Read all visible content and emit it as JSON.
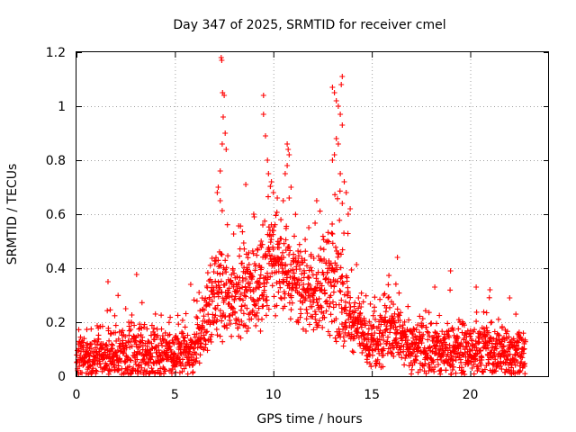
{
  "chart_data": {
    "type": "scatter",
    "title": "Day 347 of 2025, SRMTID for receiver cmel",
    "xlabel": "GPS time / hours",
    "ylabel": "SRMTID / TECUs",
    "xlim": [
      0,
      24
    ],
    "ylim": [
      0,
      1.2
    ],
    "xticks": [
      0,
      5,
      10,
      15,
      20
    ],
    "yticks": [
      0,
      0.2,
      0.4,
      0.6,
      0.8,
      1,
      1.2
    ],
    "xtick_labels": [
      "0",
      "5",
      "10",
      "15",
      "20"
    ],
    "ytick_labels": [
      "0",
      "0.2",
      "0.4",
      "0.6",
      "0.8",
      "1",
      "1.2"
    ],
    "grid": true,
    "marker": "+",
    "color": "#ff0000",
    "series": [
      {
        "name": "SRMTID",
        "profile": [
          {
            "x": 0,
            "base": 0.07,
            "spread": 0.06
          },
          {
            "x": 1,
            "base": 0.07,
            "spread": 0.06
          },
          {
            "x": 2,
            "base": 0.08,
            "spread": 0.08
          },
          {
            "x": 3,
            "base": 0.09,
            "spread": 0.09
          },
          {
            "x": 4,
            "base": 0.08,
            "spread": 0.08
          },
          {
            "x": 5,
            "base": 0.07,
            "spread": 0.07
          },
          {
            "x": 6,
            "base": 0.1,
            "spread": 0.08
          },
          {
            "x": 7,
            "base": 0.3,
            "spread": 0.15
          },
          {
            "x": 8,
            "base": 0.3,
            "spread": 0.12
          },
          {
            "x": 9,
            "base": 0.32,
            "spread": 0.14
          },
          {
            "x": 10,
            "base": 0.45,
            "spread": 0.16
          },
          {
            "x": 11,
            "base": 0.35,
            "spread": 0.14
          },
          {
            "x": 12,
            "base": 0.3,
            "spread": 0.12
          },
          {
            "x": 13,
            "base": 0.35,
            "spread": 0.16
          },
          {
            "x": 14,
            "base": 0.2,
            "spread": 0.1
          },
          {
            "x": 15,
            "base": 0.12,
            "spread": 0.08
          },
          {
            "x": 16,
            "base": 0.18,
            "spread": 0.1
          },
          {
            "x": 17,
            "base": 0.1,
            "spread": 0.08
          },
          {
            "x": 18,
            "base": 0.1,
            "spread": 0.08
          },
          {
            "x": 19,
            "base": 0.09,
            "spread": 0.08
          },
          {
            "x": 20,
            "base": 0.1,
            "spread": 0.09
          },
          {
            "x": 21,
            "base": 0.09,
            "spread": 0.08
          },
          {
            "x": 22,
            "base": 0.08,
            "spread": 0.08
          },
          {
            "x": 22.8,
            "base": 0.07,
            "spread": 0.07
          }
        ],
        "x_range": [
          0,
          22.8
        ],
        "samples": 2300,
        "outliers": [
          [
            7.35,
            1.18
          ],
          [
            7.38,
            1.17
          ],
          [
            7.42,
            1.05
          ],
          [
            7.5,
            1.04
          ],
          [
            7.45,
            0.96
          ],
          [
            7.55,
            0.9
          ],
          [
            7.4,
            0.86
          ],
          [
            7.6,
            0.84
          ],
          [
            7.3,
            0.76
          ],
          [
            7.2,
            0.7
          ],
          [
            7.15,
            0.68
          ],
          [
            7.3,
            0.65
          ],
          [
            9.5,
            1.04
          ],
          [
            9.5,
            0.97
          ],
          [
            9.6,
            0.89
          ],
          [
            9.7,
            0.8
          ],
          [
            9.75,
            0.75
          ],
          [
            9.9,
            0.72
          ],
          [
            10.0,
            0.68
          ],
          [
            10.2,
            0.66
          ],
          [
            10.5,
            0.65
          ],
          [
            10.7,
            0.86
          ],
          [
            10.75,
            0.84
          ],
          [
            10.8,
            0.82
          ],
          [
            10.7,
            0.78
          ],
          [
            10.6,
            0.75
          ],
          [
            10.9,
            0.7
          ],
          [
            10.8,
            0.66
          ],
          [
            8.6,
            0.71
          ],
          [
            9.0,
            0.6
          ],
          [
            13.0,
            1.07
          ],
          [
            13.1,
            1.05
          ],
          [
            13.2,
            1.02
          ],
          [
            13.3,
            1.0
          ],
          [
            13.5,
            1.11
          ],
          [
            13.45,
            1.08
          ],
          [
            13.4,
            0.97
          ],
          [
            13.5,
            0.93
          ],
          [
            13.2,
            0.88
          ],
          [
            13.3,
            0.86
          ],
          [
            13.1,
            0.82
          ],
          [
            13.0,
            0.8
          ],
          [
            13.4,
            0.75
          ],
          [
            13.6,
            0.72
          ],
          [
            13.7,
            0.68
          ],
          [
            13.5,
            0.64
          ],
          [
            13.8,
            0.6
          ],
          [
            13.9,
            0.62
          ],
          [
            12.2,
            0.65
          ],
          [
            11.8,
            0.55
          ],
          [
            16.3,
            0.44
          ],
          [
            19.0,
            0.39
          ],
          [
            1.6,
            0.35
          ],
          [
            5.8,
            0.34
          ],
          [
            18.2,
            0.33
          ],
          [
            21.0,
            0.32
          ],
          [
            20.3,
            0.33
          ],
          [
            22.0,
            0.29
          ],
          [
            2.5,
            0.25
          ],
          [
            15.6,
            0.3
          ]
        ]
      }
    ]
  }
}
